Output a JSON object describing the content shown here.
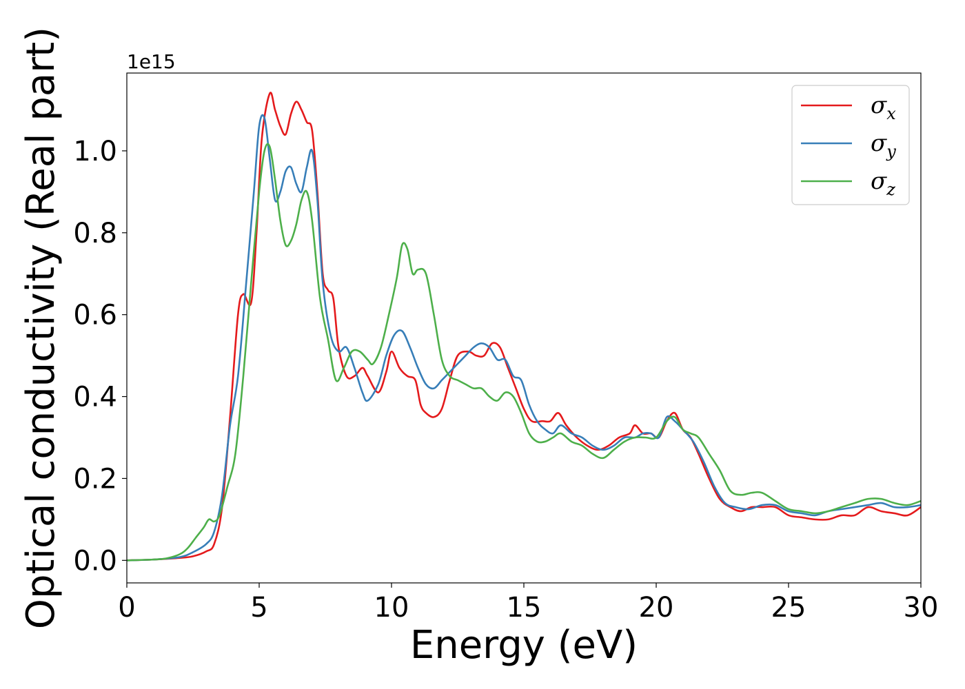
{
  "chart_data": {
    "type": "line",
    "title": "",
    "xlabel": "Energy (eV)",
    "ylabel": "Optical conductivity (Real part)",
    "y_offset_label": "1e15",
    "xlim": [
      0,
      30
    ],
    "ylim": [
      -0.055,
      1.19
    ],
    "xticks": [
      0,
      5,
      10,
      15,
      20,
      25,
      30
    ],
    "xtick_labels": [
      "0",
      "5",
      "10",
      "15",
      "20",
      "25",
      "30"
    ],
    "yticks": [
      0.0,
      0.2,
      0.4,
      0.6,
      0.8,
      1.0
    ],
    "ytick_labels": [
      "0.0",
      "0.2",
      "0.4",
      "0.6",
      "0.8",
      "1.0"
    ],
    "grid": false,
    "legend_position": "top-right",
    "legend": [
      {
        "symbol": "σ",
        "sub": "x",
        "color": "#e41a1c"
      },
      {
        "symbol": "σ",
        "sub": "y",
        "color": "#377eb8"
      },
      {
        "symbol": "σ",
        "sub": "z",
        "color": "#4daf4a"
      }
    ],
    "series": [
      {
        "color": "#e41a1c",
        "x": [
          0,
          1,
          2,
          2.5,
          3,
          3.3,
          3.6,
          3.9,
          4.2,
          4.4,
          4.7,
          4.9,
          5.1,
          5.4,
          5.6,
          5.8,
          6.0,
          6.2,
          6.4,
          6.6,
          6.8,
          7.0,
          7.2,
          7.4,
          7.6,
          7.8,
          8.0,
          8.3,
          8.6,
          8.9,
          9.1,
          9.5,
          9.8,
          10.0,
          10.3,
          10.6,
          10.9,
          11.1,
          11.3,
          11.6,
          11.9,
          12.2,
          12.5,
          12.9,
          13.2,
          13.5,
          13.8,
          14.1,
          14.4,
          14.7,
          15.0,
          15.3,
          15.7,
          16.0,
          16.3,
          16.6,
          17.0,
          17.4,
          17.8,
          18.2,
          18.6,
          19.0,
          19.2,
          19.5,
          19.8,
          20.1,
          20.4,
          20.7,
          21.0,
          21.3,
          21.6,
          22.0,
          22.4,
          22.8,
          23.2,
          23.6,
          24.0,
          24.5,
          25.0,
          25.5,
          26.0,
          26.5,
          27.0,
          27.5,
          28.0,
          28.5,
          29.0,
          29.5,
          30.0
        ],
        "y": [
          0.0,
          0.002,
          0.006,
          0.01,
          0.022,
          0.04,
          0.13,
          0.35,
          0.6,
          0.65,
          0.63,
          0.8,
          1.03,
          1.14,
          1.1,
          1.06,
          1.04,
          1.09,
          1.12,
          1.1,
          1.07,
          1.05,
          0.9,
          0.7,
          0.66,
          0.64,
          0.52,
          0.45,
          0.45,
          0.47,
          0.45,
          0.41,
          0.46,
          0.51,
          0.47,
          0.45,
          0.44,
          0.38,
          0.36,
          0.35,
          0.37,
          0.44,
          0.5,
          0.51,
          0.5,
          0.5,
          0.53,
          0.52,
          0.47,
          0.42,
          0.37,
          0.34,
          0.34,
          0.34,
          0.36,
          0.33,
          0.3,
          0.28,
          0.27,
          0.28,
          0.3,
          0.31,
          0.33,
          0.31,
          0.31,
          0.3,
          0.34,
          0.36,
          0.32,
          0.3,
          0.26,
          0.2,
          0.15,
          0.13,
          0.12,
          0.13,
          0.13,
          0.13,
          0.11,
          0.105,
          0.1,
          0.1,
          0.11,
          0.11,
          0.13,
          0.12,
          0.115,
          0.11,
          0.13
        ]
      },
      {
        "color": "#377eb8",
        "x": [
          0,
          1,
          2,
          2.5,
          3,
          3.3,
          3.6,
          3.9,
          4.2,
          4.5,
          4.8,
          5.0,
          5.2,
          5.4,
          5.6,
          5.8,
          6.0,
          6.2,
          6.4,
          6.6,
          6.8,
          7.0,
          7.2,
          7.4,
          7.7,
          8.0,
          8.3,
          8.6,
          8.9,
          9.1,
          9.5,
          9.8,
          10.1,
          10.4,
          10.7,
          11.0,
          11.3,
          11.6,
          11.9,
          12.2,
          12.5,
          12.8,
          13.1,
          13.4,
          13.7,
          14.0,
          14.3,
          14.6,
          14.9,
          15.2,
          15.5,
          15.8,
          16.1,
          16.4,
          16.8,
          17.2,
          17.6,
          18.0,
          18.4,
          18.8,
          19.2,
          19.5,
          19.8,
          20.1,
          20.4,
          20.7,
          21.0,
          21.4,
          21.8,
          22.2,
          22.6,
          23.0,
          23.5,
          24.0,
          24.5,
          25.0,
          25.5,
          26.0,
          26.5,
          27.0,
          27.5,
          28.0,
          28.5,
          29.0,
          29.5,
          30.0
        ],
        "y": [
          0.0,
          0.002,
          0.008,
          0.02,
          0.04,
          0.07,
          0.16,
          0.33,
          0.45,
          0.67,
          0.9,
          1.06,
          1.08,
          0.98,
          0.88,
          0.9,
          0.95,
          0.96,
          0.92,
          0.9,
          0.96,
          1.0,
          0.88,
          0.68,
          0.55,
          0.51,
          0.52,
          0.47,
          0.41,
          0.39,
          0.43,
          0.5,
          0.55,
          0.56,
          0.52,
          0.47,
          0.43,
          0.42,
          0.44,
          0.46,
          0.48,
          0.5,
          0.52,
          0.53,
          0.52,
          0.49,
          0.49,
          0.45,
          0.44,
          0.38,
          0.34,
          0.32,
          0.31,
          0.33,
          0.31,
          0.3,
          0.28,
          0.27,
          0.28,
          0.3,
          0.3,
          0.31,
          0.31,
          0.3,
          0.35,
          0.34,
          0.32,
          0.29,
          0.24,
          0.18,
          0.14,
          0.13,
          0.125,
          0.135,
          0.135,
          0.12,
          0.115,
          0.11,
          0.12,
          0.125,
          0.13,
          0.135,
          0.14,
          0.13,
          0.13,
          0.135
        ]
      },
      {
        "color": "#4daf4a",
        "x": [
          0,
          1,
          1.5,
          2.0,
          2.3,
          2.6,
          2.9,
          3.1,
          3.3,
          3.5,
          3.8,
          4.1,
          4.4,
          4.7,
          5.0,
          5.2,
          5.4,
          5.6,
          5.8,
          6.0,
          6.2,
          6.4,
          6.6,
          6.8,
          7.0,
          7.3,
          7.6,
          7.9,
          8.2,
          8.5,
          8.8,
          9.1,
          9.3,
          9.6,
          9.9,
          10.2,
          10.4,
          10.6,
          10.8,
          11.0,
          11.3,
          11.6,
          11.9,
          12.2,
          12.5,
          12.8,
          13.1,
          13.4,
          13.7,
          14.0,
          14.3,
          14.6,
          14.9,
          15.2,
          15.5,
          15.8,
          16.1,
          16.4,
          16.8,
          17.2,
          17.6,
          18.0,
          18.4,
          18.8,
          19.2,
          19.6,
          20.0,
          20.4,
          20.7,
          21.0,
          21.3,
          21.6,
          22.0,
          22.4,
          22.8,
          23.2,
          23.6,
          24.0,
          24.5,
          25.0,
          25.5,
          26.0,
          26.5,
          27.0,
          27.5,
          28.0,
          28.5,
          29.0,
          29.5,
          30.0
        ],
        "y": [
          0.0,
          0.002,
          0.005,
          0.015,
          0.03,
          0.055,
          0.08,
          0.1,
          0.095,
          0.11,
          0.18,
          0.26,
          0.45,
          0.68,
          0.9,
          1.0,
          1.01,
          0.93,
          0.83,
          0.77,
          0.78,
          0.82,
          0.88,
          0.9,
          0.83,
          0.64,
          0.54,
          0.44,
          0.47,
          0.51,
          0.51,
          0.49,
          0.48,
          0.52,
          0.6,
          0.69,
          0.77,
          0.76,
          0.7,
          0.71,
          0.7,
          0.6,
          0.49,
          0.45,
          0.44,
          0.43,
          0.42,
          0.42,
          0.4,
          0.39,
          0.41,
          0.4,
          0.36,
          0.31,
          0.29,
          0.29,
          0.3,
          0.31,
          0.29,
          0.28,
          0.26,
          0.25,
          0.27,
          0.29,
          0.3,
          0.3,
          0.3,
          0.34,
          0.35,
          0.32,
          0.31,
          0.3,
          0.26,
          0.22,
          0.17,
          0.16,
          0.165,
          0.165,
          0.145,
          0.125,
          0.12,
          0.115,
          0.12,
          0.13,
          0.14,
          0.15,
          0.15,
          0.14,
          0.135,
          0.145
        ]
      }
    ]
  }
}
